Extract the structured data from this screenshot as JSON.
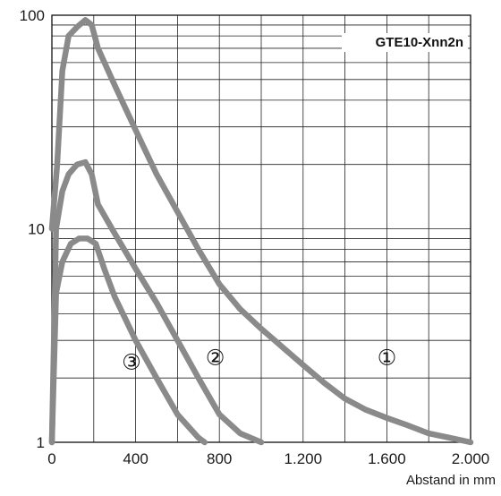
{
  "chart_data": {
    "type": "line",
    "title": "",
    "tag": "GTE10-Xnn2n",
    "xlabel": "Abstand in mm",
    "ylabel": "",
    "xscale": "linear",
    "yscale": "log",
    "xlim": [
      0,
      2000
    ],
    "ylim": [
      1,
      100
    ],
    "grid": true,
    "x_ticks": [
      {
        "value": 0,
        "label": "0"
      },
      {
        "value": 400,
        "label": "400"
      },
      {
        "value": 800,
        "label": "800"
      },
      {
        "value": 1200,
        "label": "1.200"
      },
      {
        "value": 1600,
        "label": "1.600"
      },
      {
        "value": 2000,
        "label": "2.000"
      }
    ],
    "y_ticks": [
      {
        "value": 1,
        "label": "1"
      },
      {
        "value": 10,
        "label": "10"
      },
      {
        "value": 100,
        "label": "100"
      }
    ],
    "series": [
      {
        "label": "①",
        "color": "#8a8a8a",
        "x": [
          0,
          25,
          50,
          80,
          120,
          160,
          190,
          220,
          300,
          400,
          500,
          600,
          700,
          800,
          900,
          1000,
          1100,
          1200,
          1300,
          1400,
          1500,
          1600,
          1700,
          1800,
          1900,
          2000
        ],
        "y": [
          10,
          20,
          55,
          80,
          88,
          95,
          90,
          70,
          47,
          29,
          18,
          12,
          8,
          5.5,
          4.2,
          3.4,
          2.8,
          2.3,
          1.9,
          1.6,
          1.42,
          1.3,
          1.2,
          1.1,
          1.05,
          1.0
        ]
      },
      {
        "label": "②",
        "color": "#8a8a8a",
        "x": [
          0,
          20,
          50,
          80,
          120,
          160,
          190,
          220,
          300,
          400,
          500,
          600,
          700,
          800,
          900,
          1000
        ],
        "y": [
          1,
          10,
          15,
          18,
          20,
          20.5,
          18,
          13,
          9.5,
          6.5,
          4.5,
          3.0,
          2.0,
          1.35,
          1.1,
          1.0
        ]
      },
      {
        "label": "③",
        "color": "#8a8a8a",
        "x": [
          0,
          20,
          50,
          90,
          130,
          170,
          210,
          250,
          300,
          350,
          400,
          500,
          600,
          700,
          730
        ],
        "y": [
          1,
          5,
          7,
          8.5,
          9,
          9,
          8.5,
          6.5,
          4.8,
          3.8,
          3.0,
          2.0,
          1.35,
          1.05,
          1.0
        ]
      }
    ],
    "curve_labels": [
      {
        "text": "①",
        "x": 1600,
        "y": 2.3
      },
      {
        "text": "②",
        "x": 780,
        "y": 2.3
      },
      {
        "text": "③",
        "x": 380,
        "y": 2.2
      }
    ]
  }
}
